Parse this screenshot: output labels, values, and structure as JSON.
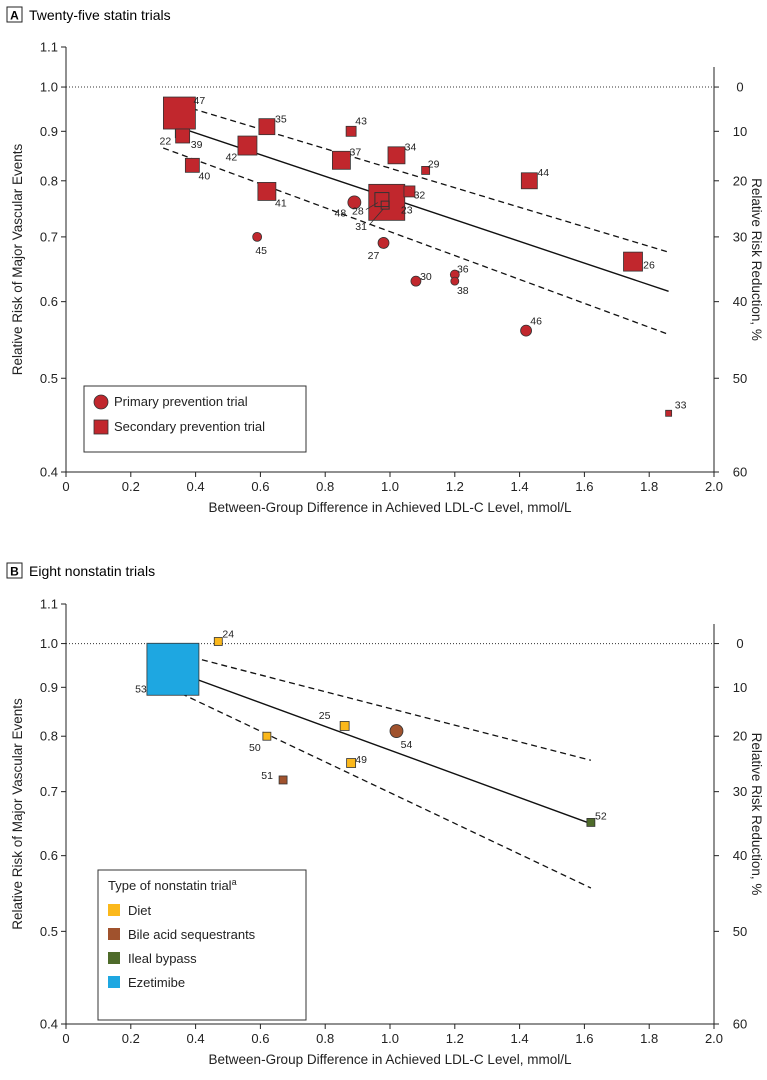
{
  "chart_data": [
    {
      "panel": "A",
      "type": "scatter",
      "title": "Twenty-five statin trials",
      "xlabel": "Between-Group Difference in Achieved LDL-C Level, mmol/L",
      "ylabel": "Relative Risk of Major Vascular Events",
      "y2label": "Relative Risk Reduction, %",
      "xlim": [
        0,
        2.0
      ],
      "ylim": [
        0.4,
        1.1
      ],
      "y_scale": "log",
      "x_ticks": [
        "0",
        "0.2",
        "0.4",
        "0.6",
        "0.8",
        "1.0",
        "1.2",
        "1.4",
        "1.6",
        "1.8",
        "2.0"
      ],
      "y_ticks": [
        "0.4",
        "0.5",
        "0.6",
        "0.7",
        "0.8",
        "0.9",
        "1.0",
        "1.1"
      ],
      "y2_ticks": [
        "0",
        "10",
        "20",
        "30",
        "40",
        "50",
        "60"
      ],
      "reference_line": 1.0,
      "legend_position": "bottom-left",
      "legend": [
        {
          "label": "Primary prevention trial",
          "shape": "circle",
          "color": "#c1272d"
        },
        {
          "label": "Secondary prevention trial",
          "shape": "square",
          "color": "#c1272d"
        }
      ],
      "regression": {
        "x": [
          0.3,
          1.86
        ],
        "y": [
          0.92,
          0.615
        ]
      },
      "ci_upper": {
        "x": [
          0.3,
          1.86
        ],
        "y": [
          0.97,
          0.675
        ]
      },
      "ci_lower": {
        "x": [
          0.3,
          1.86
        ],
        "y": [
          0.865,
          0.555
        ]
      },
      "points": [
        {
          "id": "47",
          "x": 0.35,
          "y": 0.94,
          "shape": "square",
          "size": 32
        },
        {
          "id": "22",
          "x": 0.35,
          "y": 0.895,
          "shape": "square",
          "size": 8,
          "outline": true
        },
        {
          "id": "39",
          "x": 0.36,
          "y": 0.89,
          "shape": "square",
          "size": 14
        },
        {
          "id": "40",
          "x": 0.39,
          "y": 0.83,
          "shape": "square",
          "size": 14
        },
        {
          "id": "42",
          "x": 0.56,
          "y": 0.87,
          "shape": "square",
          "size": 19
        },
        {
          "id": "35",
          "x": 0.62,
          "y": 0.91,
          "shape": "square",
          "size": 16
        },
        {
          "id": "41",
          "x": 0.62,
          "y": 0.78,
          "shape": "square",
          "size": 18
        },
        {
          "id": "45",
          "x": 0.59,
          "y": 0.7,
          "shape": "circle",
          "size": 9
        },
        {
          "id": "37",
          "x": 0.85,
          "y": 0.84,
          "shape": "square",
          "size": 18
        },
        {
          "id": "43",
          "x": 0.88,
          "y": 0.9,
          "shape": "square",
          "size": 10
        },
        {
          "id": "48",
          "x": 0.89,
          "y": 0.76,
          "shape": "circle",
          "size": 13
        },
        {
          "id": "23",
          "x": 0.99,
          "y": 0.76,
          "shape": "square",
          "size": 36
        },
        {
          "id": "28",
          "x": 0.975,
          "y": 0.765,
          "shape": "square",
          "size": 14,
          "outline": true
        },
        {
          "id": "31",
          "x": 0.985,
          "y": 0.755,
          "shape": "square",
          "size": 8,
          "outline": true
        },
        {
          "id": "27",
          "x": 0.98,
          "y": 0.69,
          "shape": "circle",
          "size": 11
        },
        {
          "id": "34",
          "x": 1.02,
          "y": 0.85,
          "shape": "square",
          "size": 17
        },
        {
          "id": "32",
          "x": 1.06,
          "y": 0.78,
          "shape": "square",
          "size": 11
        },
        {
          "id": "29",
          "x": 1.11,
          "y": 0.82,
          "shape": "square",
          "size": 8
        },
        {
          "id": "30",
          "x": 1.08,
          "y": 0.63,
          "shape": "circle",
          "size": 10
        },
        {
          "id": "36",
          "x": 1.2,
          "y": 0.64,
          "shape": "circle",
          "size": 9
        },
        {
          "id": "38",
          "x": 1.2,
          "y": 0.63,
          "shape": "circle",
          "size": 8
        },
        {
          "id": "44",
          "x": 1.43,
          "y": 0.8,
          "shape": "square",
          "size": 16
        },
        {
          "id": "46",
          "x": 1.42,
          "y": 0.56,
          "shape": "circle",
          "size": 11
        },
        {
          "id": "26",
          "x": 1.75,
          "y": 0.66,
          "shape": "square",
          "size": 19
        },
        {
          "id": "33",
          "x": 1.86,
          "y": 0.46,
          "shape": "square",
          "size": 6
        }
      ]
    },
    {
      "panel": "B",
      "type": "scatter",
      "title": "Eight nonstatin trials",
      "xlabel": "Between-Group Difference in Achieved LDL-C Level, mmol/L",
      "ylabel": "Relative Risk of Major Vascular Events",
      "y2label": "Relative Risk Reduction, %",
      "xlim": [
        0,
        2.0
      ],
      "ylim": [
        0.4,
        1.1
      ],
      "y_scale": "log",
      "x_ticks": [
        "0",
        "0.2",
        "0.4",
        "0.6",
        "0.8",
        "1.0",
        "1.2",
        "1.4",
        "1.6",
        "1.8",
        "2.0"
      ],
      "y_ticks": [
        "0.4",
        "0.5",
        "0.6",
        "0.7",
        "0.8",
        "0.9",
        "1.0",
        "1.1"
      ],
      "y2_ticks": [
        "0",
        "10",
        "20",
        "30",
        "40",
        "50",
        "60"
      ],
      "reference_line": 1.0,
      "legend_title": "Type of nonstatin trial",
      "legend_title_sup": "a",
      "legend_position": "bottom-left",
      "legend": [
        {
          "label": "Diet",
          "color": "#fbb81b"
        },
        {
          "label": "Bile acid sequestrants",
          "color": "#a0522d"
        },
        {
          "label": "Ileal bypass",
          "color": "#4e6b2a"
        },
        {
          "label": "Ezetimibe",
          "color": "#1ea7e1"
        }
      ],
      "regression": {
        "x": [
          0.3,
          1.62
        ],
        "y": [
          0.945,
          0.648
        ]
      },
      "ci_upper": {
        "x": [
          0.3,
          1.62
        ],
        "y": [
          0.985,
          0.755
        ]
      },
      "ci_lower": {
        "x": [
          0.3,
          1.62
        ],
        "y": [
          0.905,
          0.555
        ]
      },
      "points": [
        {
          "id": "53",
          "x": 0.33,
          "y": 0.94,
          "shape": "square",
          "size": 52,
          "color": "#1ea7e1"
        },
        {
          "id": "24",
          "x": 0.47,
          "y": 1.005,
          "shape": "square",
          "size": 8,
          "color": "#fbb81b"
        },
        {
          "id": "50",
          "x": 0.62,
          "y": 0.8,
          "shape": "square",
          "size": 8,
          "color": "#fbb81b"
        },
        {
          "id": "51",
          "x": 0.67,
          "y": 0.72,
          "shape": "square",
          "size": 8,
          "color": "#a0522d"
        },
        {
          "id": "25",
          "x": 0.86,
          "y": 0.82,
          "shape": "square",
          "size": 9,
          "color": "#fbb81b"
        },
        {
          "id": "49",
          "x": 0.88,
          "y": 0.75,
          "shape": "square",
          "size": 9,
          "color": "#fbb81b"
        },
        {
          "id": "54",
          "x": 1.02,
          "y": 0.81,
          "shape": "circle",
          "size": 13,
          "color": "#a0522d"
        },
        {
          "id": "52",
          "x": 1.62,
          "y": 0.65,
          "shape": "square",
          "size": 8,
          "color": "#4e6b2a"
        }
      ]
    }
  ],
  "colors": {
    "statin": "#c1272d",
    "axis": "#222222"
  }
}
